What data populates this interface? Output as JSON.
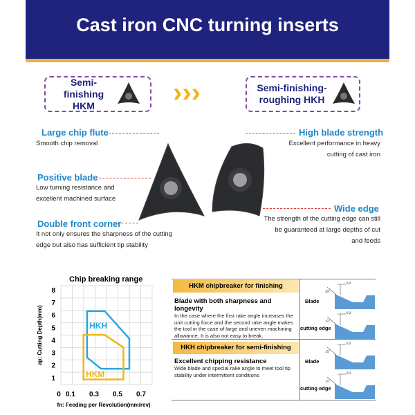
{
  "header": {
    "title": "Cast iron CNC turning inserts"
  },
  "types": [
    {
      "label": "Semi-finishing HKM"
    },
    {
      "label": "Semi-finishing-roughing HKH"
    }
  ],
  "arrows": "›››",
  "features": [
    {
      "title": "Large chip flute",
      "desc": "Smooth chip removal"
    },
    {
      "title": "Positive blade",
      "desc": "Low turning resistance and excellent machined surface"
    },
    {
      "title": "Double front corner",
      "desc": "It not only ensures the sharpness of the cutting edge but also has sufficient tip stability"
    },
    {
      "title": "High blade strength",
      "desc": "Excellent performance in heavy cutting of cast iron"
    },
    {
      "title": "Wide edge",
      "desc": "The strength of the cutting edge can still be guaranteed at large depths of cut and feeds"
    }
  ],
  "chart_data": {
    "type": "area",
    "title": "Chip breaking range",
    "xlabel": "fn: Feeding per Revolution(mm/rev)",
    "ylabel": "ap: Cutting Depth(mm)",
    "xticks": [
      "0",
      "0.1",
      "0.3",
      "0.5",
      "0.7"
    ],
    "xtick_values": [
      0,
      0.1,
      0.3,
      0.5,
      0.7
    ],
    "yticks": [
      "1",
      "2",
      "3",
      "4",
      "5",
      "6",
      "7",
      "8"
    ],
    "ytick_values": [
      1,
      2,
      3,
      4,
      5,
      6,
      7,
      8
    ],
    "xlim": [
      0,
      0.8
    ],
    "ylim": [
      0,
      8.4
    ],
    "grid": true,
    "series": [
      {
        "name": "HKH",
        "color": "#29a8e0",
        "points": [
          [
            0.24,
            6.3
          ],
          [
            0.39,
            6.3
          ],
          [
            0.6,
            4.1
          ],
          [
            0.6,
            1.7
          ],
          [
            0.36,
            1.7
          ],
          [
            0.24,
            2.6
          ]
        ]
      },
      {
        "name": "HKM",
        "color": "#f2b517",
        "points": [
          [
            0.21,
            4.4
          ],
          [
            0.39,
            4.4
          ],
          [
            0.55,
            3.4
          ],
          [
            0.55,
            0.85
          ],
          [
            0.21,
            0.85
          ]
        ]
      }
    ]
  },
  "table": {
    "hkm": {
      "band": "HKM chipbreaker for finishing",
      "heading": "Blade with both sharpness and longevity",
      "text": "In the case where the first rake angle increases the unit cutting force and the second rake angle makes the tool in the case of large and uneven machining allowance, It  is also not easy to break."
    },
    "hkh": {
      "band": "HKH chipbreaker for semi-finishing",
      "heading": "Excellent chipping resistance",
      "text": "Wide blade and special rake angle to meet tool tip stability under intermittent conditions"
    },
    "diagrams": [
      {
        "label": "Blade",
        "dim": "0.2",
        "angle": "30°"
      },
      {
        "label": "cutting edge",
        "dim": "0.2",
        "angle": "15°"
      },
      {
        "label": "Blade",
        "dim": "0.3",
        "angle": "15°"
      },
      {
        "label": "cutting edge",
        "dim": "0.3",
        "angle": "15°"
      }
    ]
  }
}
